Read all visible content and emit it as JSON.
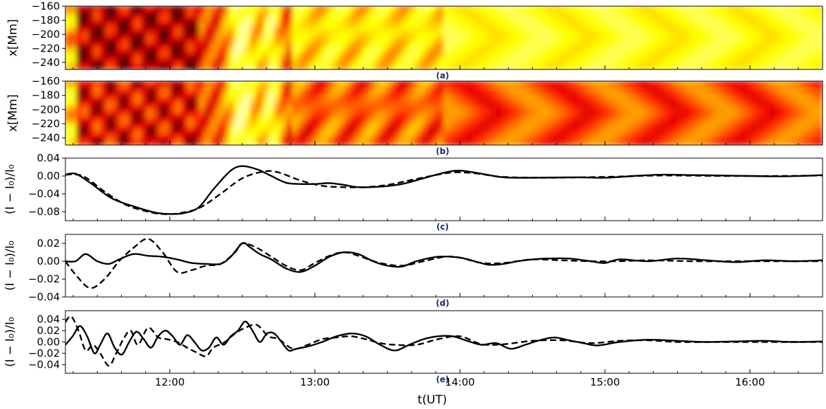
{
  "figure": {
    "x_axis_label": "t(UT)",
    "x_ticks": [
      {
        "t": 12.0,
        "label": "12:00"
      },
      {
        "t": 13.0,
        "label": "13:00"
      },
      {
        "t": 14.0,
        "label": "14:00"
      },
      {
        "t": 15.0,
        "label": "15:00"
      },
      {
        "t": 16.0,
        "label": "16:00"
      }
    ],
    "colors": {
      "line": "#000000",
      "frame": "#000000",
      "panel_letter": "#1a2a6c"
    }
  },
  "chart_data": [
    {
      "type": "heatmap",
      "panel": "(a)",
      "ylabel": "x[Mm]",
      "ylim": [
        -250,
        -160
      ],
      "yticks": [
        "-160",
        "-180",
        "-200",
        "-220",
        "-240"
      ],
      "xlim": [
        11.28,
        16.5
      ],
      "colormap": "hot"
    },
    {
      "type": "heatmap",
      "panel": "(b)",
      "ylabel": "x[Mm]",
      "ylim": [
        -250,
        -160
      ],
      "yticks": [
        "-160",
        "-180",
        "-200",
        "-220",
        "-240"
      ],
      "xlim": [
        11.28,
        16.5
      ],
      "colormap": "hot"
    },
    {
      "type": "line",
      "panel": "(c)",
      "ylabel": "(I − I₀)/I₀",
      "ylim": [
        -0.1,
        0.04
      ],
      "yticks": [
        0.04,
        0.0,
        -0.04,
        -0.08
      ],
      "ytick_labels": [
        "0.04",
        "0.00",
        "−0.04",
        "−0.08"
      ],
      "xlim": [
        11.28,
        16.5
      ],
      "series": [
        {
          "name": "solid",
          "style": "solid",
          "x": [
            11.28,
            11.35,
            11.45,
            11.6,
            11.75,
            11.9,
            12.0,
            12.1,
            12.2,
            12.3,
            12.42,
            12.5,
            12.6,
            12.7,
            12.8,
            12.9,
            13.0,
            13.1,
            13.2,
            13.3,
            13.45,
            13.6,
            13.75,
            13.9,
            14.0,
            14.15,
            14.3,
            14.5,
            14.8,
            15.0,
            15.2,
            15.4,
            15.6,
            15.8,
            16.0,
            16.2,
            16.35,
            16.5
          ],
          "values": [
            0.003,
            0.005,
            -0.015,
            -0.05,
            -0.068,
            -0.082,
            -0.085,
            -0.083,
            -0.07,
            -0.03,
            0.012,
            0.022,
            0.015,
            0.0,
            -0.015,
            -0.018,
            -0.018,
            -0.016,
            -0.02,
            -0.025,
            -0.024,
            -0.018,
            -0.005,
            0.008,
            0.012,
            0.005,
            -0.003,
            -0.004,
            -0.003,
            -0.004,
            0.0,
            0.003,
            0.002,
            0.001,
            0.0,
            -0.001,
            0.0,
            0.002
          ]
        },
        {
          "name": "dashed",
          "style": "dashed",
          "x": [
            11.28,
            11.4,
            11.55,
            11.7,
            11.85,
            11.95,
            12.05,
            12.2,
            12.35,
            12.5,
            12.65,
            12.75,
            12.9,
            13.05,
            13.2,
            13.35,
            13.5,
            13.65,
            13.8,
            13.95,
            14.1,
            14.3,
            14.6,
            15.0,
            15.4,
            15.8,
            16.2,
            16.5
          ],
          "values": [
            0.003,
            0.0,
            -0.035,
            -0.065,
            -0.08,
            -0.085,
            -0.084,
            -0.072,
            -0.04,
            -0.005,
            0.01,
            0.008,
            -0.01,
            -0.022,
            -0.025,
            -0.025,
            -0.02,
            -0.01,
            0.0,
            0.008,
            0.006,
            -0.002,
            -0.004,
            -0.002,
            0.001,
            0.0,
            0.0,
            0.001
          ]
        }
      ]
    },
    {
      "type": "line",
      "panel": "(d)",
      "ylabel": "(I − I₀)/I₀",
      "ylim": [
        -0.04,
        0.03
      ],
      "yticks": [
        0.02,
        0.0,
        -0.02,
        -0.04
      ],
      "ytick_labels": [
        "0.02",
        "0.00",
        "−0.02",
        "−0.04"
      ],
      "xlim": [
        11.28,
        16.5
      ],
      "series": [
        {
          "name": "solid",
          "style": "solid",
          "x": [
            11.28,
            11.35,
            11.42,
            11.5,
            11.58,
            11.65,
            11.75,
            11.85,
            11.95,
            12.05,
            12.15,
            12.25,
            12.35,
            12.42,
            12.5,
            12.55,
            12.62,
            12.7,
            12.8,
            12.9,
            13.0,
            13.1,
            13.2,
            13.3,
            13.4,
            13.5,
            13.6,
            13.7,
            13.85,
            14.0,
            14.1,
            14.2,
            14.3,
            14.4,
            14.5,
            14.6,
            14.75,
            14.9,
            15.0,
            15.1,
            15.3,
            15.5,
            15.7,
            15.9,
            16.1,
            16.3,
            16.5
          ],
          "values": [
            0.0,
            0.0,
            0.008,
            0.0,
            -0.003,
            0.002,
            0.008,
            0.006,
            0.005,
            0.002,
            -0.002,
            -0.003,
            -0.003,
            0.005,
            0.02,
            0.016,
            0.008,
            0.002,
            -0.008,
            -0.012,
            -0.005,
            0.005,
            0.01,
            0.008,
            0.0,
            -0.005,
            -0.006,
            0.0,
            0.005,
            0.004,
            0.0,
            -0.004,
            -0.003,
            0.0,
            0.002,
            0.003,
            0.003,
            0.0,
            -0.002,
            0.002,
            0.0,
            0.003,
            0.001,
            -0.001,
            0.001,
            0.0,
            0.001
          ]
        },
        {
          "name": "dashed",
          "style": "dashed",
          "x": [
            11.28,
            11.35,
            11.45,
            11.55,
            11.65,
            11.75,
            11.85,
            11.95,
            12.05,
            12.15,
            12.25,
            12.35,
            12.45,
            12.5,
            12.6,
            12.7,
            12.8,
            12.9,
            13.0,
            13.1,
            13.2,
            13.3,
            13.45,
            13.6,
            13.75,
            13.9,
            14.0,
            14.15,
            14.3,
            14.5,
            14.7,
            14.9,
            15.1,
            15.3,
            15.6,
            15.9,
            16.2,
            16.5
          ],
          "values": [
            0.0,
            -0.015,
            -0.03,
            -0.02,
            0.0,
            0.015,
            0.025,
            0.01,
            -0.012,
            -0.01,
            -0.005,
            -0.003,
            0.01,
            0.02,
            0.015,
            0.005,
            -0.005,
            -0.01,
            -0.002,
            0.006,
            0.01,
            0.006,
            -0.002,
            -0.005,
            0.0,
            0.005,
            0.004,
            -0.002,
            -0.002,
            0.002,
            0.001,
            0.0,
            0.0,
            0.001,
            0.0,
            0.0,
            0.0,
            0.0
          ]
        }
      ]
    },
    {
      "type": "line",
      "panel": "(e)",
      "ylabel": "(I − I₀)/I₀",
      "ylim": [
        -0.055,
        0.055
      ],
      "yticks": [
        0.04,
        0.02,
        0.0,
        -0.02,
        -0.04
      ],
      "ytick_labels": [
        "0.04",
        "0.02",
        "0.00",
        "−0.02",
        "−0.04"
      ],
      "xlim": [
        11.28,
        16.5
      ],
      "series": [
        {
          "name": "solid",
          "style": "solid",
          "x": [
            11.28,
            11.33,
            11.38,
            11.43,
            11.48,
            11.52,
            11.57,
            11.62,
            11.67,
            11.72,
            11.77,
            11.82,
            11.87,
            11.92,
            11.97,
            12.02,
            12.07,
            12.12,
            12.17,
            12.22,
            12.27,
            12.32,
            12.37,
            12.42,
            12.47,
            12.52,
            12.57,
            12.62,
            12.67,
            12.72,
            12.77,
            12.82,
            12.87,
            12.95,
            13.05,
            13.15,
            13.25,
            13.35,
            13.45,
            13.55,
            13.65,
            13.75,
            13.85,
            13.95,
            14.05,
            14.15,
            14.25,
            14.35,
            14.45,
            14.55,
            14.65,
            14.75,
            14.85,
            14.95,
            15.1,
            15.3,
            15.5,
            15.7,
            15.9,
            16.1,
            16.3,
            16.5
          ],
          "values": [
            -0.005,
            0.01,
            0.028,
            0.01,
            -0.02,
            -0.005,
            0.015,
            -0.01,
            -0.022,
            0.0,
            0.018,
            0.005,
            -0.01,
            0.01,
            0.02,
            0.01,
            -0.005,
            0.012,
            0.0,
            -0.015,
            -0.01,
            0.008,
            -0.005,
            0.01,
            0.02,
            0.036,
            0.02,
            0.0,
            0.015,
            0.015,
            0.0,
            -0.015,
            -0.012,
            -0.008,
            0.0,
            0.01,
            0.015,
            0.01,
            -0.005,
            -0.015,
            -0.005,
            0.005,
            0.01,
            0.01,
            0.002,
            -0.005,
            -0.002,
            -0.012,
            -0.005,
            0.003,
            0.008,
            0.003,
            -0.002,
            -0.006,
            0.0,
            0.004,
            0.002,
            0.0,
            0.001,
            0.002,
            0.0,
            0.001
          ]
        },
        {
          "name": "dashed",
          "style": "dashed",
          "x": [
            11.28,
            11.32,
            11.37,
            11.42,
            11.47,
            11.52,
            11.58,
            11.63,
            11.68,
            11.73,
            11.78,
            11.85,
            11.92,
            11.98,
            12.05,
            12.12,
            12.18,
            12.25,
            12.3,
            12.38,
            12.45,
            12.52,
            12.6,
            12.68,
            12.75,
            12.85,
            12.95,
            13.05,
            13.15,
            13.25,
            13.35,
            13.45,
            13.55,
            13.7,
            13.85,
            14.0,
            14.15,
            14.3,
            14.5,
            14.7,
            14.9,
            15.1,
            15.3,
            15.5,
            15.8,
            16.1,
            16.5
          ],
          "values": [
            0.035,
            0.045,
            0.02,
            -0.015,
            -0.005,
            -0.02,
            -0.042,
            -0.02,
            0.005,
            0.02,
            -0.005,
            0.025,
            0.008,
            0.005,
            0.0,
            -0.01,
            -0.018,
            -0.025,
            -0.01,
            0.0,
            0.015,
            0.025,
            0.03,
            0.01,
            0.005,
            -0.012,
            -0.005,
            0.005,
            0.008,
            0.01,
            0.005,
            -0.002,
            -0.005,
            -0.005,
            0.005,
            0.01,
            -0.004,
            -0.004,
            0.002,
            0.003,
            -0.002,
            0.002,
            0.003,
            0.0,
            0.0,
            0.0,
            0.0
          ]
        }
      ]
    }
  ]
}
